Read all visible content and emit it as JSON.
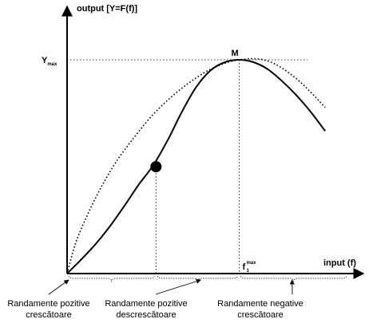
{
  "chart_data": {
    "type": "line",
    "ylabel": "output [Y=F(f)]",
    "xlabel": "input (f)",
    "xlim": [
      0,
      10
    ],
    "ylim": [
      0,
      10
    ],
    "grid": false,
    "legend": "none",
    "points": {
      "M": {
        "label": "M",
        "x": 6.0,
        "y": 9.0
      },
      "inflection": {
        "x": 3.1,
        "y": 4.5
      }
    },
    "guide_labels": {
      "ymax": "Y",
      "ymax_sub": "max",
      "fmax": "f",
      "fmax_sup": "max",
      "fmax_sub": "1"
    },
    "series": [
      {
        "style": "solid",
        "color": "#000000",
        "x": [
          0,
          0.5,
          1.0,
          1.5,
          2.0,
          2.5,
          3.0,
          3.5,
          4.0,
          4.5,
          5.0,
          5.5,
          6.0,
          6.5,
          7.0,
          7.5,
          8.0,
          8.5,
          9.0
        ],
        "y": [
          0.0,
          0.6,
          1.25,
          2.0,
          2.85,
          3.75,
          4.55,
          5.6,
          6.8,
          7.85,
          8.55,
          8.9,
          9.0,
          8.9,
          8.6,
          8.1,
          7.5,
          6.8,
          6.0
        ]
      },
      {
        "style": "dotted",
        "color": "#000000",
        "x": [
          0,
          0.25,
          0.5,
          1.0,
          1.5,
          2.0,
          3.0,
          4.0,
          5.0,
          6.0,
          7.0,
          8.0,
          9.0
        ],
        "y": [
          0.0,
          1.1,
          1.9,
          3.2,
          4.3,
          5.2,
          6.7,
          7.8,
          8.6,
          9.0,
          8.95,
          8.2,
          7.0
        ]
      }
    ],
    "regions": [
      {
        "label_line1": "Randamente pozitive",
        "label_line2": "crescătoare",
        "x_from": 0.0,
        "x_to": 3.1
      },
      {
        "label_line1": "Randamente pozitive",
        "label_line2": "descrescătoare",
        "x_from": 3.1,
        "x_to": 6.0
      },
      {
        "label_line1": "Randamente negative",
        "label_line2": "crescătoare",
        "x_from": 6.0,
        "x_to": 9.8
      }
    ]
  }
}
